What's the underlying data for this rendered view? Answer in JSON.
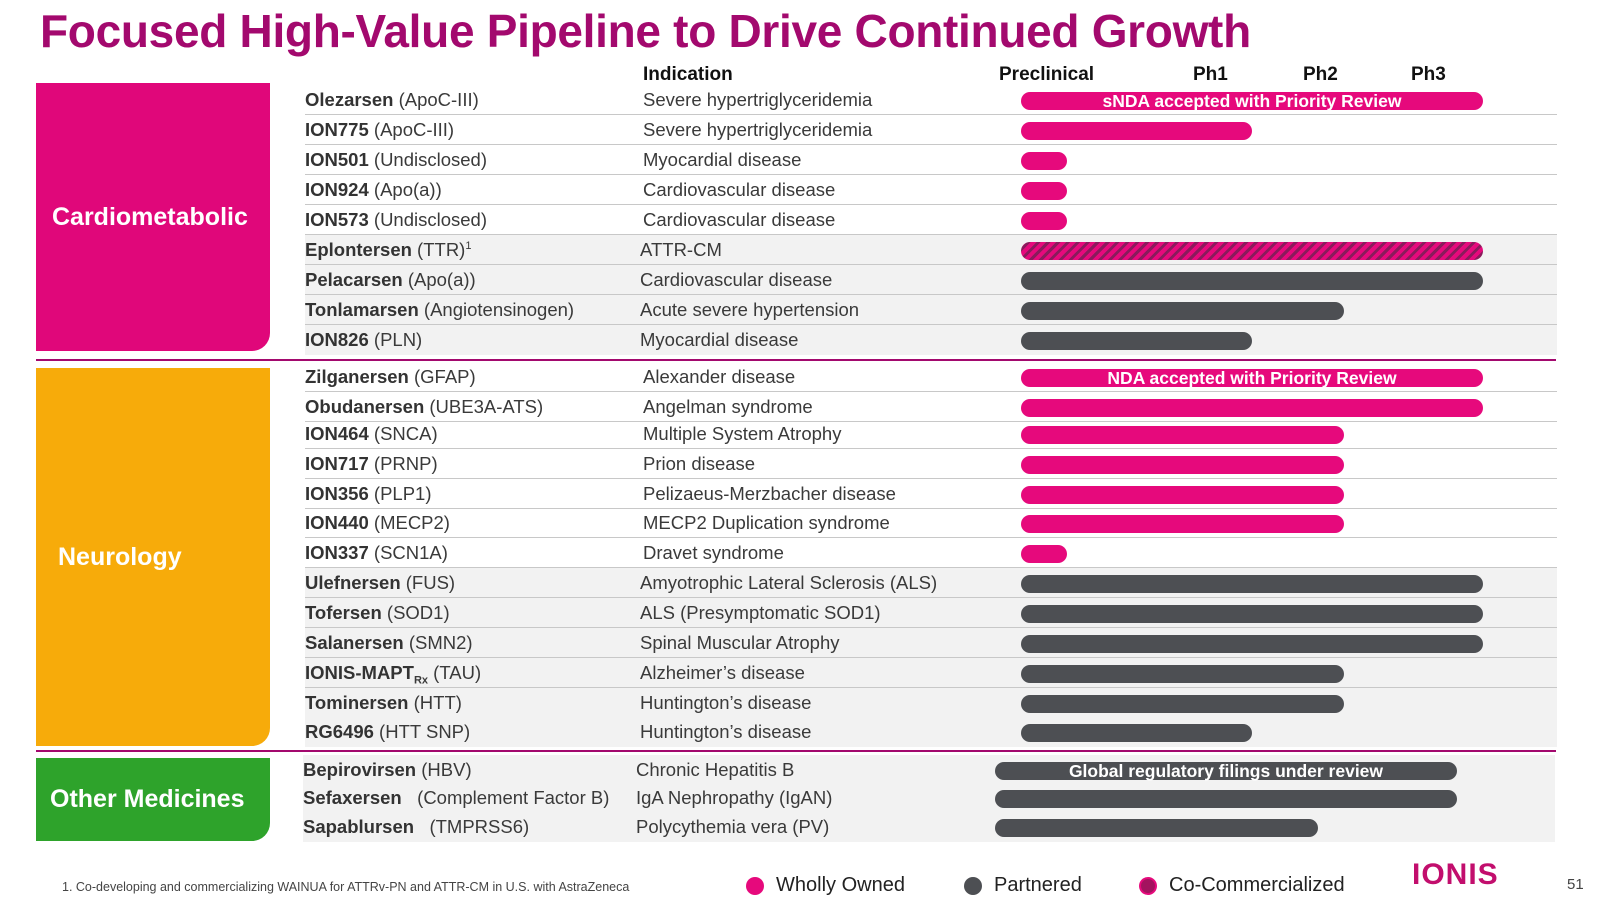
{
  "title": "Focused High-Value Pipeline to Drive Continued Growth",
  "headers": {
    "indication": "Indication",
    "preclinical": "Preclinical",
    "ph1": "Ph1",
    "ph2": "Ph2",
    "ph3": "Ph3"
  },
  "categories": {
    "cardiometabolic": "Cardiometabolic",
    "neurology": "Neurology",
    "other": "Other Medicines"
  },
  "colors": {
    "title": "#a3096e",
    "cardiometabolic": "#e0077a",
    "neurology": "#f7ab0a",
    "other": "#2ea32b",
    "wholly_owned": "#e6097c",
    "partnered": "#4d4f53"
  },
  "stage_scale": [
    "Preclinical",
    "Ph1",
    "Ph2",
    "Ph3"
  ],
  "rows": [
    {
      "drug": "Olezarsen",
      "target": " (ApoC-III)",
      "indication": "Severe hypertriglyceridemia",
      "type": "wholly",
      "progress": 1.0,
      "note": "sNDA accepted with Priority Review"
    },
    {
      "drug": "ION775",
      "target": " (ApoC-III)",
      "indication": "Severe hypertriglyceridemia",
      "type": "wholly",
      "progress": 0.5,
      "note": ""
    },
    {
      "drug": "ION501",
      "target": " (Undisclosed)",
      "indication": "Myocardial disease",
      "type": "wholly",
      "progress": 0.1,
      "note": ""
    },
    {
      "drug": "ION924",
      "target": " (Apo(a))",
      "indication": "Cardiovascular disease",
      "type": "wholly",
      "progress": 0.1,
      "note": ""
    },
    {
      "drug": "ION573",
      "target": " (Undisclosed)",
      "indication": "Cardiovascular disease",
      "type": "wholly",
      "progress": 0.1,
      "note": ""
    },
    {
      "drug": "Eplontersen",
      "target": " (TTR)",
      "sup": "1",
      "indication": "ATTR-CM",
      "type": "co",
      "progress": 1.0,
      "note": ""
    },
    {
      "drug": "Pelacarsen",
      "target": " (Apo(a))",
      "indication": "Cardiovascular disease",
      "type": "partner",
      "progress": 1.0,
      "note": ""
    },
    {
      "drug": "Tonlamarsen",
      "target": " (Angiotensinogen)",
      "indication": "Acute severe hypertension",
      "type": "partner",
      "progress": 0.7,
      "note": ""
    },
    {
      "drug": "ION826",
      "target": " (PLN)",
      "indication": "Myocardial disease",
      "type": "partner",
      "progress": 0.5,
      "note": ""
    },
    {
      "drug": "Zilganersen",
      "target": " (GFAP)",
      "indication": "Alexander disease",
      "type": "wholly",
      "progress": 1.0,
      "note": "NDA accepted with Priority Review"
    },
    {
      "drug": "Obudanersen",
      "target": " (UBE3A-ATS)",
      "indication": "Angelman syndrome",
      "type": "wholly",
      "progress": 1.0,
      "note": ""
    },
    {
      "drug": "ION464",
      "target": " (SNCA)",
      "indication": "Multiple System Atrophy",
      "type": "wholly",
      "progress": 0.7,
      "note": ""
    },
    {
      "drug": "ION717",
      "target": " (PRNP)",
      "indication": "Prion disease",
      "type": "wholly",
      "progress": 0.7,
      "note": ""
    },
    {
      "drug": "ION356",
      "target": " (PLP1)",
      "indication": "Pelizaeus-Merzbacher disease",
      "type": "wholly",
      "progress": 0.7,
      "note": ""
    },
    {
      "drug": "ION440",
      "target": " (MECP2)",
      "indication": "MECP2 Duplication syndrome",
      "type": "wholly",
      "progress": 0.7,
      "note": ""
    },
    {
      "drug": "ION337",
      "target": " (SCN1A)",
      "indication": "Dravet syndrome",
      "type": "wholly",
      "progress": 0.1,
      "note": ""
    },
    {
      "drug": "Ulefnersen",
      "target": " (FUS)",
      "indication": "Amyotrophic Lateral Sclerosis (ALS)",
      "type": "partner",
      "progress": 1.0,
      "note": ""
    },
    {
      "drug": "Tofersen",
      "target": " (SOD1)",
      "indication": "ALS (Presymptomatic SOD1)",
      "type": "partner",
      "progress": 1.0,
      "note": ""
    },
    {
      "drug": "Salanersen",
      "target": " (SMN2)",
      "indication": "Spinal Muscular Atrophy",
      "type": "partner",
      "progress": 1.0,
      "note": ""
    },
    {
      "drug": "IONIS-MAPT",
      "drug_sub": "Rx",
      "target": " (TAU)",
      "indication": "Alzheimer’s disease",
      "type": "partner",
      "progress": 0.7,
      "note": ""
    },
    {
      "drug": "Tominersen",
      "target": " (HTT)",
      "indication": "Huntington’s disease",
      "type": "partner",
      "progress": 0.7,
      "note": ""
    },
    {
      "drug": "RG6496",
      "target": " (HTT SNP)",
      "indication": "Huntington’s disease",
      "type": "partner",
      "progress": 0.5,
      "note": ""
    },
    {
      "drug": "Bepirovirsen",
      "target": " (HBV)",
      "indication": "Chronic Hepatitis B",
      "type": "partner",
      "progress": 1.0,
      "note": "Global regulatory filings under review"
    },
    {
      "drug": "Sefaxersen",
      "target": "   (Complement Factor B)",
      "indication": "IgA Nephropathy (IgAN)",
      "type": "partner",
      "progress": 1.0,
      "note": ""
    },
    {
      "drug": "Sapablursen",
      "target": "   (TMPRSS6)",
      "indication": "Polycythemia vera (PV)",
      "type": "partner",
      "progress": 0.7,
      "note": ""
    }
  ],
  "footnote": "1. Co-developing and commercializing WAINUA for ATTRv-PN and ATTR-CM in U.S. with AstraZeneca",
  "legend": {
    "wholly": "Wholly Owned",
    "partnered": "Partnered",
    "co": "Co-Commercialized"
  },
  "logo": "IONIS",
  "page_number": "51"
}
